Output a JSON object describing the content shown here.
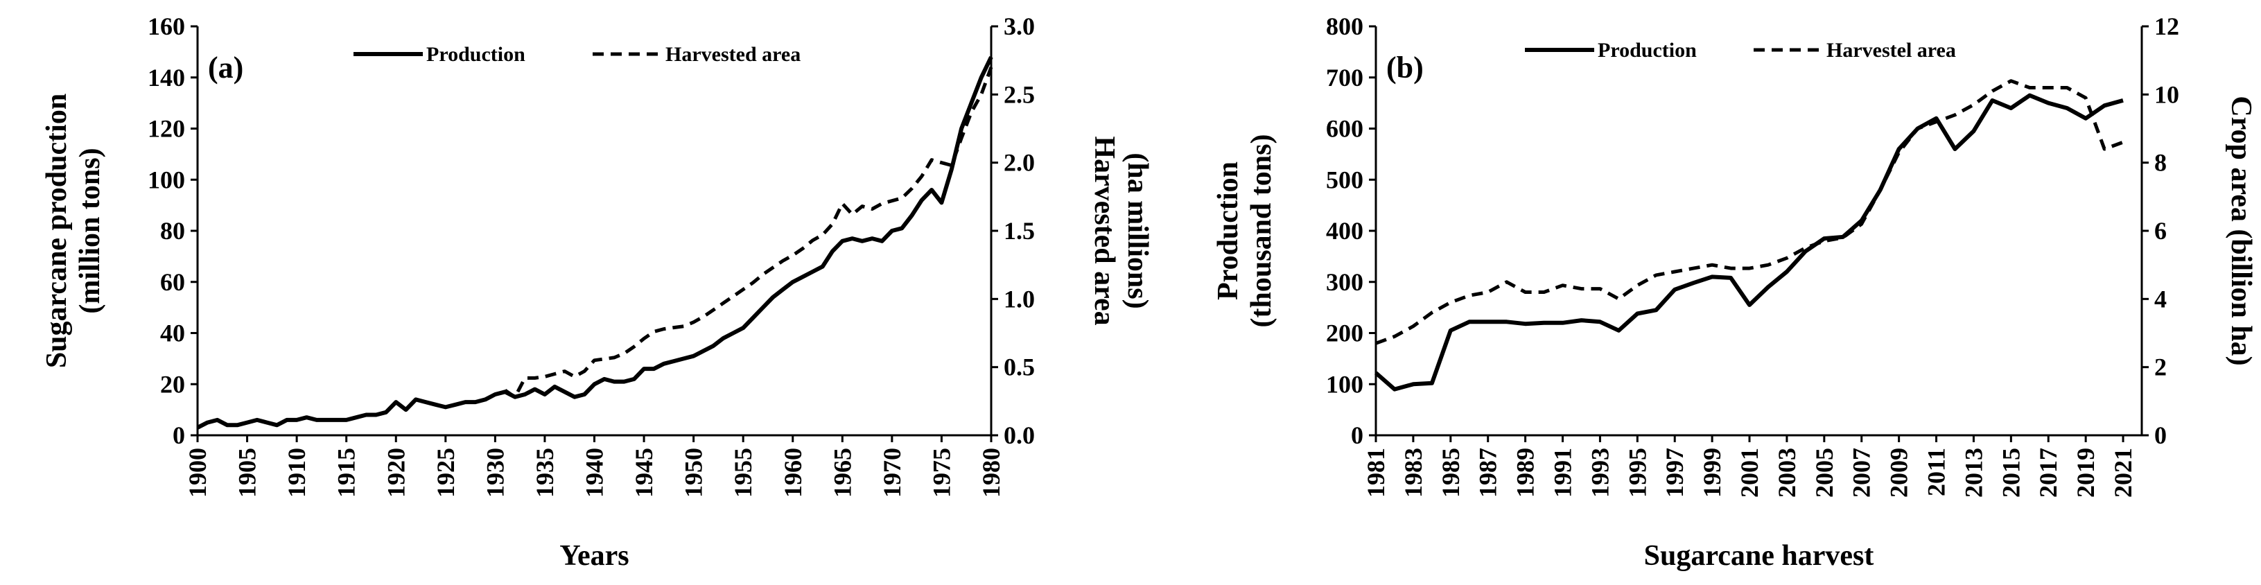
{
  "chart_data": [
    {
      "type": "line",
      "panel_label": "(a)",
      "xlabel": "Years",
      "ylabel": [
        "Sugarcane  production",
        "(million tons)"
      ],
      "y2label": [
        "Harvested area",
        "(ha millions)"
      ],
      "xlim": [
        1900,
        1980
      ],
      "ylim": [
        0,
        160
      ],
      "y2lim": [
        0,
        3.0
      ],
      "x_ticks": [
        "1900",
        "1905",
        "1910",
        "1915",
        "1920",
        "1925",
        "1930",
        "1935",
        "1940",
        "1945",
        "1950",
        "1955",
        "1960",
        "1965",
        "1970",
        "1975",
        "1980"
      ],
      "y_ticks": [
        "0",
        "20",
        "40",
        "60",
        "80",
        "100",
        "120",
        "140",
        "160"
      ],
      "y2_ticks": [
        "0.0",
        "0.5",
        "1.0",
        "1.5",
        "2.0",
        "2.5",
        "3.0"
      ],
      "legend_position": "top",
      "series": [
        {
          "name": "Production",
          "axis": "left",
          "style": "solid",
          "x": [
            1900,
            1901,
            1902,
            1903,
            1904,
            1905,
            1906,
            1907,
            1908,
            1909,
            1910,
            1911,
            1912,
            1913,
            1914,
            1915,
            1916,
            1917,
            1918,
            1919,
            1920,
            1921,
            1922,
            1923,
            1924,
            1925,
            1926,
            1927,
            1928,
            1929,
            1930,
            1931,
            1932,
            1933,
            1934,
            1935,
            1936,
            1937,
            1938,
            1939,
            1940,
            1941,
            1942,
            1943,
            1944,
            1945,
            1946,
            1947,
            1948,
            1949,
            1950,
            1951,
            1952,
            1953,
            1954,
            1955,
            1956,
            1957,
            1958,
            1959,
            1960,
            1961,
            1962,
            1963,
            1964,
            1965,
            1966,
            1967,
            1968,
            1969,
            1970,
            1971,
            1972,
            1973,
            1974,
            1975,
            1976,
            1977,
            1978,
            1979,
            1980
          ],
          "values": [
            3,
            5,
            6,
            4,
            4,
            5,
            6,
            5,
            4,
            6,
            6,
            7,
            6,
            6,
            6,
            6,
            7,
            8,
            8,
            9,
            13,
            10,
            14,
            13,
            12,
            11,
            12,
            13,
            13,
            14,
            16,
            17,
            15,
            16,
            18,
            16,
            19,
            17,
            15,
            16,
            20,
            22,
            21,
            21,
            22,
            26,
            26,
            28,
            29,
            30,
            31,
            33,
            35,
            38,
            40,
            42,
            46,
            50,
            54,
            57,
            60,
            62,
            64,
            66,
            72,
            76,
            77,
            76,
            77,
            76,
            80,
            81,
            86,
            92,
            96,
            91,
            104,
            120,
            130,
            140,
            148
          ]
        },
        {
          "name": "Harvested area",
          "axis": "right",
          "style": "dashed",
          "x": [
            1931,
            1932,
            1933,
            1934,
            1935,
            1936,
            1937,
            1938,
            1939,
            1940,
            1941,
            1942,
            1943,
            1944,
            1945,
            1946,
            1947,
            1948,
            1949,
            1950,
            1951,
            1952,
            1953,
            1954,
            1955,
            1956,
            1957,
            1958,
            1959,
            1960,
            1961,
            1962,
            1963,
            1964,
            1965,
            1966,
            1967,
            1968,
            1969,
            1970,
            1971,
            1972,
            1973,
            1974,
            1975,
            1976,
            1977,
            1978,
            1979,
            1980
          ],
          "values": [
            0.33,
            0.28,
            0.42,
            0.42,
            0.43,
            0.45,
            0.47,
            0.43,
            0.47,
            0.55,
            0.56,
            0.57,
            0.6,
            0.65,
            0.71,
            0.76,
            0.78,
            0.79,
            0.8,
            0.83,
            0.87,
            0.92,
            0.97,
            1.02,
            1.07,
            1.12,
            1.18,
            1.23,
            1.28,
            1.32,
            1.37,
            1.43,
            1.47,
            1.55,
            1.7,
            1.62,
            1.68,
            1.66,
            1.7,
            1.72,
            1.74,
            1.81,
            1.9,
            2.02,
            2.0,
            1.98,
            2.18,
            2.37,
            2.5,
            2.7
          ]
        }
      ]
    },
    {
      "type": "line",
      "panel_label": "(b)",
      "xlabel": "Sugarcane harvest",
      "ylabel": [
        "Production",
        "(thousand tons)"
      ],
      "y2label": [
        "Crop area (billion ha)"
      ],
      "xlim": [
        1981,
        2022
      ],
      "ylim": [
        0,
        800
      ],
      "y2lim": [
        0,
        12
      ],
      "x_ticks": [
        "1981",
        "1983",
        "1985",
        "1987",
        "1989",
        "1991",
        "1993",
        "1995",
        "1997",
        "1999",
        "2001",
        "2003",
        "2005",
        "2007",
        "2009",
        "2011",
        "2013",
        "2015",
        "2017",
        "2019",
        "2021"
      ],
      "y_ticks": [
        "0",
        "100",
        "200",
        "300",
        "400",
        "500",
        "600",
        "700",
        "800"
      ],
      "y2_ticks": [
        "0",
        "2",
        "4",
        "6",
        "8",
        "10",
        "12"
      ],
      "legend_position": "top",
      "series": [
        {
          "name": "Production",
          "axis": "left",
          "style": "solid",
          "x": [
            1981,
            1982,
            1983,
            1984,
            1985,
            1986,
            1987,
            1988,
            1989,
            1990,
            1991,
            1992,
            1993,
            1994,
            1995,
            1996,
            1997,
            1998,
            1999,
            2000,
            2001,
            2002,
            2003,
            2004,
            2005,
            2006,
            2007,
            2008,
            2009,
            2010,
            2011,
            2012,
            2013,
            2014,
            2015,
            2016,
            2017,
            2018,
            2019,
            2020,
            2021
          ],
          "values": [
            122,
            90,
            100,
            102,
            205,
            222,
            222,
            222,
            218,
            220,
            220,
            225,
            222,
            205,
            238,
            245,
            285,
            298,
            310,
            308,
            255,
            290,
            320,
            360,
            385,
            388,
            420,
            480,
            560,
            600,
            620,
            560,
            595,
            655,
            640,
            665,
            650,
            640,
            620,
            645,
            655
          ]
        },
        {
          "name": "Harvest area",
          "axis": "right",
          "style": "dashed",
          "x": [
            1981,
            1982,
            1983,
            1984,
            1985,
            1986,
            1987,
            1988,
            1989,
            1990,
            1991,
            1992,
            1993,
            1994,
            1995,
            1996,
            1997,
            1998,
            1999,
            2000,
            2001,
            2002,
            2003,
            2004,
            2005,
            2006,
            2007,
            2008,
            2009,
            2010,
            2011,
            2012,
            2013,
            2014,
            2015,
            2016,
            2017,
            2018,
            2019,
            2020,
            2021
          ],
          "values": [
            2.7,
            2.9,
            3.2,
            3.6,
            3.9,
            4.1,
            4.2,
            4.5,
            4.2,
            4.2,
            4.4,
            4.3,
            4.3,
            4.0,
            4.4,
            4.7,
            4.8,
            4.9,
            5.0,
            4.9,
            4.9,
            5.0,
            5.2,
            5.5,
            5.7,
            5.8,
            6.2,
            7.2,
            8.3,
            9.0,
            9.2,
            9.4,
            9.7,
            10.1,
            10.4,
            10.2,
            10.2,
            10.2,
            9.9,
            8.4,
            8.6
          ]
        }
      ]
    }
  ],
  "legend_labels": {
    "a": {
      "production": "Production",
      "area": "Harvested area"
    },
    "b": {
      "production": "Production",
      "area": "Harvestel area"
    }
  },
  "colors": {
    "lines": "#000000",
    "axes": "#000000",
    "background": "#ffffff"
  }
}
